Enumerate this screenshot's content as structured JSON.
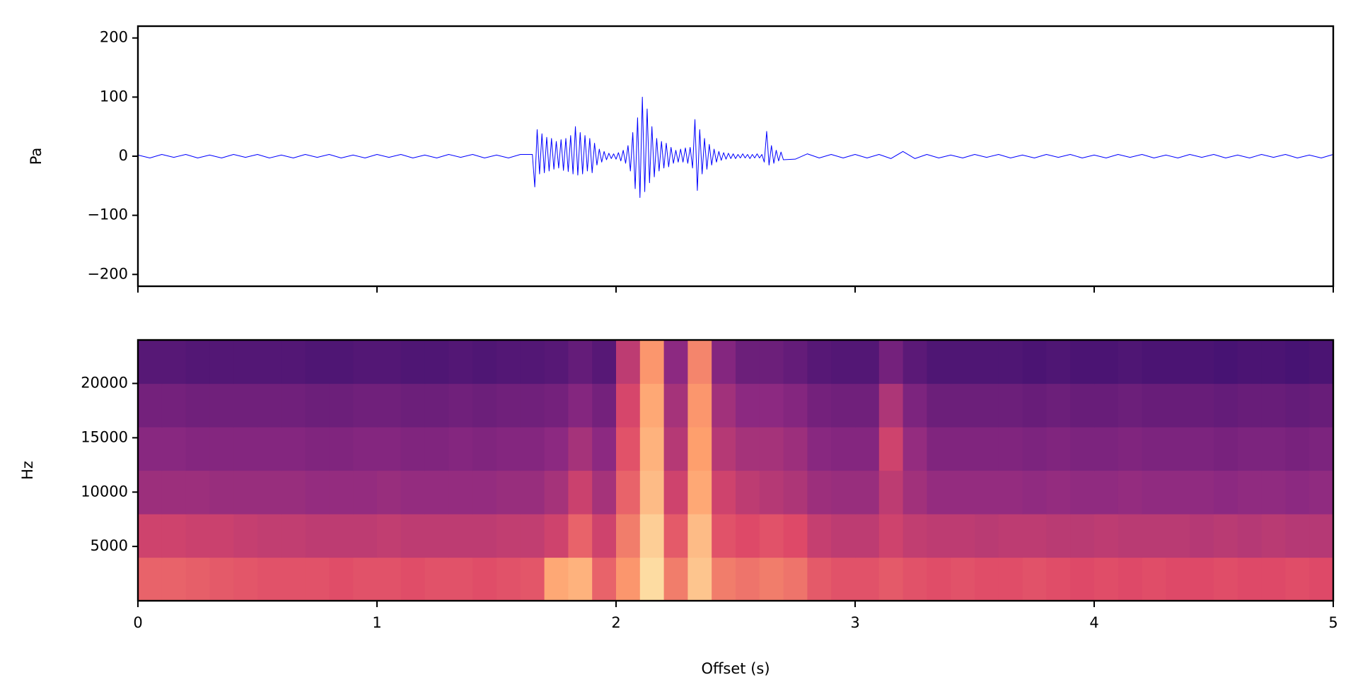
{
  "chart_data": [
    {
      "type": "line",
      "ylabel": "Pa",
      "color": "#0000ff",
      "xlim": [
        0,
        5
      ],
      "xticks": [
        0,
        1,
        2,
        3,
        4,
        5
      ],
      "ylim": [
        -220,
        220
      ],
      "yticks": [
        {
          "value": -200,
          "label": "−200"
        },
        {
          "value": -100,
          "label": "−100"
        },
        0,
        100,
        200
      ],
      "x": [
        0,
        0.05,
        0.1,
        0.15,
        0.2,
        0.25,
        0.3,
        0.35,
        0.4,
        0.45,
        0.5,
        0.55,
        0.6,
        0.65,
        0.7,
        0.75,
        0.8,
        0.85,
        0.9,
        0.95,
        1,
        1.05,
        1.1,
        1.15,
        1.2,
        1.25,
        1.3,
        1.35,
        1.4,
        1.45,
        1.5,
        1.55,
        1.6,
        1.65,
        1.66,
        1.67,
        1.68,
        1.69,
        1.7,
        1.71,
        1.72,
        1.73,
        1.74,
        1.75,
        1.76,
        1.77,
        1.78,
        1.79,
        1.8,
        1.81,
        1.82,
        1.83,
        1.84,
        1.85,
        1.86,
        1.87,
        1.88,
        1.89,
        1.9,
        1.91,
        1.92,
        1.93,
        1.94,
        1.95,
        1.96,
        1.97,
        1.98,
        1.99,
        2,
        2.01,
        2.02,
        2.03,
        2.04,
        2.05,
        2.06,
        2.07,
        2.08,
        2.09,
        2.1,
        2.11,
        2.12,
        2.13,
        2.14,
        2.15,
        2.16,
        2.17,
        2.18,
        2.19,
        2.2,
        2.21,
        2.22,
        2.23,
        2.24,
        2.25,
        2.26,
        2.27,
        2.28,
        2.29,
        2.3,
        2.31,
        2.32,
        2.33,
        2.34,
        2.35,
        2.36,
        2.37,
        2.38,
        2.39,
        2.4,
        2.41,
        2.42,
        2.43,
        2.44,
        2.45,
        2.46,
        2.47,
        2.48,
        2.49,
        2.5,
        2.51,
        2.52,
        2.53,
        2.54,
        2.55,
        2.56,
        2.57,
        2.58,
        2.59,
        2.6,
        2.61,
        2.62,
        2.63,
        2.64,
        2.65,
        2.66,
        2.67,
        2.68,
        2.69,
        2.7,
        2.75,
        2.8,
        2.85,
        2.9,
        2.95,
        3,
        3.05,
        3.1,
        3.15,
        3.2,
        3.25,
        3.3,
        3.35,
        3.4,
        3.45,
        3.5,
        3.55,
        3.6,
        3.65,
        3.7,
        3.75,
        3.8,
        3.85,
        3.9,
        3.95,
        4,
        4.05,
        4.1,
        4.15,
        4.2,
        4.25,
        4.3,
        4.35,
        4.4,
        4.45,
        4.5,
        4.55,
        4.6,
        4.65,
        4.7,
        4.75,
        4.8,
        4.85,
        4.9,
        4.95,
        5
      ],
      "values": [
        2,
        -3,
        3,
        -2,
        3,
        -3,
        2,
        -3,
        3,
        -2,
        3,
        -3,
        2,
        -3,
        3,
        -2,
        3,
        -3,
        2,
        -3,
        3,
        -2,
        3,
        -3,
        2,
        -3,
        3,
        -2,
        3,
        -3,
        2,
        -3,
        3,
        3,
        -52,
        45,
        -30,
        38,
        -28,
        32,
        -25,
        30,
        -22,
        25,
        -20,
        28,
        -24,
        30,
        -26,
        35,
        -30,
        50,
        -32,
        40,
        -30,
        35,
        -25,
        30,
        -28,
        22,
        -15,
        12,
        -10,
        8,
        -6,
        5,
        -4,
        4,
        -5,
        6,
        -8,
        10,
        -12,
        18,
        -25,
        40,
        -55,
        65,
        -70,
        100,
        -60,
        80,
        -45,
        50,
        -35,
        30,
        -25,
        25,
        -20,
        22,
        -18,
        15,
        -12,
        10,
        -10,
        12,
        -10,
        14,
        -12,
        15,
        -20,
        62,
        -58,
        45,
        -30,
        30,
        -22,
        20,
        -15,
        12,
        -10,
        8,
        -7,
        6,
        -5,
        5,
        -4,
        4,
        -4,
        3,
        -3,
        4,
        -3,
        3,
        -4,
        3,
        -3,
        4,
        -3,
        3,
        -10,
        42,
        -15,
        18,
        -12,
        10,
        -8,
        7,
        -6,
        -5,
        4,
        -3,
        3,
        -3,
        3,
        -3,
        3,
        -4,
        8,
        -4,
        3,
        -3,
        2,
        -3,
        3,
        -2,
        3,
        -3,
        2,
        -3,
        3,
        -2,
        3,
        -3,
        2,
        -3,
        3,
        -2,
        3,
        -3,
        2,
        -3,
        3,
        -2,
        3,
        -3,
        2,
        -3,
        3,
        -2,
        3,
        -3,
        2,
        -3,
        3
      ]
    },
    {
      "type": "heatmap",
      "ylabel": "Hz",
      "xlabel": "Offset (s)",
      "colormap": "magma",
      "clim": [
        0,
        1
      ],
      "xlim": [
        0,
        5
      ],
      "xticks": [
        0,
        1,
        2,
        3,
        4,
        5
      ],
      "ylim": [
        0,
        24000
      ],
      "yticks": [
        5000,
        10000,
        15000,
        20000
      ],
      "x": [
        0,
        0.1,
        0.2,
        0.3,
        0.4,
        0.5,
        0.6,
        0.7,
        0.8,
        0.9,
        1,
        1.1,
        1.2,
        1.3,
        1.4,
        1.5,
        1.6,
        1.7,
        1.8,
        1.9,
        2,
        2.1,
        2.2,
        2.3,
        2.4,
        2.5,
        2.6,
        2.7,
        2.8,
        2.9,
        3,
        3.1,
        3.2,
        3.3,
        3.4,
        3.5,
        3.6,
        3.7,
        3.8,
        3.9,
        4,
        4.1,
        4.2,
        4.3,
        4.4,
        4.5,
        4.6,
        4.7,
        4.8,
        4.9
      ],
      "y": [
        0,
        4000,
        8000,
        12000,
        16000,
        20000
      ],
      "values": [
        [
          0.66,
          0.66,
          0.65,
          0.64,
          0.63,
          0.62,
          0.62,
          0.62,
          0.61,
          0.62,
          0.62,
          0.61,
          0.62,
          0.62,
          0.61,
          0.62,
          0.63,
          0.82,
          0.84,
          0.66,
          0.78,
          0.93,
          0.72,
          0.88,
          0.72,
          0.7,
          0.72,
          0.7,
          0.64,
          0.62,
          0.62,
          0.64,
          0.62,
          0.61,
          0.62,
          0.61,
          0.61,
          0.62,
          0.61,
          0.6,
          0.61,
          0.6,
          0.61,
          0.6,
          0.6,
          0.61,
          0.6,
          0.6,
          0.61,
          0.6
        ],
        [
          0.56,
          0.56,
          0.55,
          0.55,
          0.54,
          0.53,
          0.53,
          0.52,
          0.52,
          0.52,
          0.53,
          0.52,
          0.52,
          0.52,
          0.52,
          0.53,
          0.53,
          0.56,
          0.66,
          0.56,
          0.72,
          0.9,
          0.64,
          0.86,
          0.62,
          0.6,
          0.62,
          0.6,
          0.54,
          0.52,
          0.52,
          0.56,
          0.53,
          0.52,
          0.52,
          0.51,
          0.52,
          0.52,
          0.51,
          0.51,
          0.52,
          0.51,
          0.51,
          0.51,
          0.5,
          0.51,
          0.5,
          0.51,
          0.5,
          0.5
        ],
        [
          0.44,
          0.44,
          0.44,
          0.43,
          0.43,
          0.43,
          0.43,
          0.42,
          0.42,
          0.42,
          0.43,
          0.42,
          0.42,
          0.42,
          0.42,
          0.43,
          0.43,
          0.46,
          0.55,
          0.46,
          0.66,
          0.86,
          0.56,
          0.82,
          0.56,
          0.52,
          0.5,
          0.48,
          0.44,
          0.43,
          0.43,
          0.52,
          0.45,
          0.42,
          0.42,
          0.42,
          0.42,
          0.41,
          0.42,
          0.41,
          0.41,
          0.42,
          0.41,
          0.41,
          0.41,
          0.4,
          0.41,
          0.41,
          0.4,
          0.41
        ],
        [
          0.39,
          0.39,
          0.38,
          0.38,
          0.38,
          0.38,
          0.38,
          0.37,
          0.37,
          0.38,
          0.38,
          0.37,
          0.37,
          0.38,
          0.37,
          0.38,
          0.38,
          0.4,
          0.46,
          0.4,
          0.62,
          0.84,
          0.5,
          0.8,
          0.5,
          0.46,
          0.46,
          0.44,
          0.39,
          0.38,
          0.38,
          0.56,
          0.42,
          0.37,
          0.37,
          0.37,
          0.37,
          0.36,
          0.37,
          0.36,
          0.36,
          0.37,
          0.36,
          0.36,
          0.36,
          0.35,
          0.36,
          0.36,
          0.35,
          0.36
        ],
        [
          0.34,
          0.34,
          0.33,
          0.33,
          0.33,
          0.33,
          0.33,
          0.32,
          0.32,
          0.33,
          0.33,
          0.32,
          0.32,
          0.33,
          0.32,
          0.33,
          0.33,
          0.34,
          0.38,
          0.34,
          0.58,
          0.82,
          0.46,
          0.78,
          0.45,
          0.4,
          0.4,
          0.38,
          0.34,
          0.33,
          0.33,
          0.48,
          0.36,
          0.32,
          0.32,
          0.32,
          0.32,
          0.31,
          0.32,
          0.31,
          0.31,
          0.32,
          0.31,
          0.31,
          0.31,
          0.3,
          0.31,
          0.31,
          0.3,
          0.31
        ],
        [
          0.27,
          0.27,
          0.26,
          0.26,
          0.26,
          0.26,
          0.26,
          0.25,
          0.25,
          0.26,
          0.26,
          0.25,
          0.25,
          0.26,
          0.25,
          0.26,
          0.26,
          0.27,
          0.3,
          0.27,
          0.52,
          0.78,
          0.4,
          0.74,
          0.38,
          0.32,
          0.32,
          0.3,
          0.27,
          0.26,
          0.26,
          0.34,
          0.28,
          0.25,
          0.25,
          0.25,
          0.25,
          0.24,
          0.25,
          0.24,
          0.24,
          0.25,
          0.24,
          0.24,
          0.24,
          0.23,
          0.24,
          0.24,
          0.23,
          0.24
        ]
      ]
    }
  ]
}
